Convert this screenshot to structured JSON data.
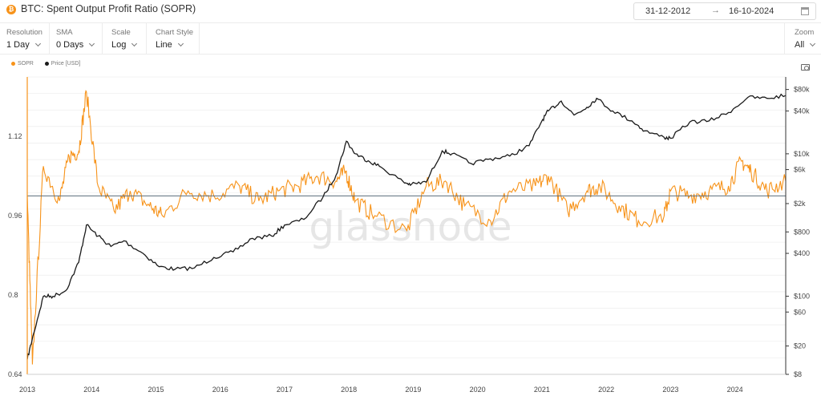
{
  "header": {
    "title": "BTC: Spent Output Profit Ratio (SOPR)",
    "asset_badge": "₿",
    "date_start": "31-12-2012",
    "date_arrow": "→",
    "date_end": "16-10-2024"
  },
  "controls": [
    {
      "label": "Resolution",
      "value": "1 Day"
    },
    {
      "label": "SMA",
      "value": "0 Days"
    },
    {
      "label": "Scale",
      "value": "Log"
    },
    {
      "label": "Chart Style",
      "value": "Line"
    }
  ],
  "zoom": {
    "label": "Zoom",
    "value": "All"
  },
  "watermark": "glassnode",
  "colors": {
    "sopr": "#f7931a",
    "price": "#1a1a1a",
    "baseline": "#5a6b7a",
    "grid": "#efefef"
  },
  "chart_data": {
    "type": "line",
    "title": "BTC: Spent Output Profit Ratio (SOPR)",
    "legend": [
      "SOPR",
      "Price [USD]"
    ],
    "legend_position": "top-left",
    "x_ticks": [
      "2013",
      "2014",
      "2015",
      "2016",
      "2017",
      "2018",
      "2019",
      "2020",
      "2021",
      "2022",
      "2023",
      "2024"
    ],
    "x_range": [
      2013.0,
      2024.79
    ],
    "left_axis": {
      "ticks": [
        "1.12",
        "0.96",
        "0.8",
        "0.64"
      ],
      "tick_values": [
        1.12,
        0.96,
        0.8,
        0.64
      ],
      "range": [
        0.64,
        1.24
      ]
    },
    "right_axis": {
      "scale": "log",
      "ticks": [
        "$80k",
        "$40k",
        "$10k",
        "$6k",
        "$2k",
        "$800",
        "$400",
        "$100",
        "$60",
        "$20",
        "$8"
      ],
      "tick_values": [
        80000,
        40000,
        10000,
        6000,
        2000,
        800,
        400,
        100,
        60,
        20,
        8
      ],
      "range": [
        8,
        120000
      ]
    },
    "baseline": 1.0,
    "series": [
      {
        "name": "Price [USD]",
        "axis": "right",
        "x": [
          2013.0,
          2013.1,
          2013.25,
          2013.4,
          2013.6,
          2013.8,
          2013.92,
          2014.1,
          2014.3,
          2014.5,
          2014.8,
          2015.05,
          2015.3,
          2015.6,
          2015.9,
          2016.2,
          2016.5,
          2016.8,
          2017.0,
          2017.3,
          2017.6,
          2017.8,
          2017.96,
          2018.1,
          2018.3,
          2018.5,
          2018.85,
          2018.97,
          2019.2,
          2019.45,
          2019.6,
          2019.9,
          2020.2,
          2020.5,
          2020.8,
          2021.0,
          2021.1,
          2021.3,
          2021.5,
          2021.7,
          2021.85,
          2022.1,
          2022.4,
          2022.6,
          2022.9,
          2023.0,
          2023.3,
          2023.6,
          2023.9,
          2024.2,
          2024.5,
          2024.79
        ],
        "y": [
          13,
          30,
          100,
          100,
          120,
          300,
          1000,
          700,
          500,
          600,
          400,
          260,
          240,
          250,
          350,
          420,
          650,
          700,
          1000,
          1200,
          2500,
          5000,
          15000,
          10000,
          8000,
          6500,
          4000,
          3700,
          4000,
          11000,
          10000,
          7300,
          8500,
          9300,
          13000,
          29000,
          40000,
          55000,
          35000,
          45000,
          60000,
          40000,
          29000,
          21000,
          17000,
          16500,
          28000,
          29000,
          38000,
          62000,
          60000,
          66000
        ]
      },
      {
        "name": "SOPR",
        "axis": "left",
        "x": [
          2013.0,
          2013.08,
          2013.25,
          2013.5,
          2013.65,
          2013.8,
          2013.92,
          2014.1,
          2014.35,
          2014.6,
          2014.9,
          2015.1,
          2015.5,
          2015.9,
          2016.3,
          2016.6,
          2016.9,
          2017.2,
          2017.5,
          2017.8,
          2017.95,
          2018.1,
          2018.4,
          2018.9,
          2019.2,
          2019.5,
          2019.8,
          2020.2,
          2020.5,
          2020.9,
          2021.1,
          2021.4,
          2021.7,
          2021.9,
          2022.2,
          2022.5,
          2022.9,
          2023.0,
          2023.3,
          2023.6,
          2023.9,
          2024.1,
          2024.25,
          2024.5,
          2024.79
        ],
        "y": [
          1.0,
          0.66,
          1.06,
          0.99,
          1.08,
          1.09,
          1.21,
          1.02,
          0.97,
          1.01,
          0.98,
          0.96,
          1.01,
          1.0,
          1.02,
          0.99,
          1.01,
          1.02,
          1.04,
          1.03,
          1.05,
          0.99,
          0.96,
          0.93,
          1.02,
          1.03,
          0.98,
          0.95,
          1.01,
          1.02,
          1.04,
          0.97,
          1.01,
          1.02,
          0.98,
          0.95,
          0.96,
          1.01,
          1.0,
          1.01,
          1.02,
          1.07,
          1.05,
          1.01,
          1.03
        ]
      }
    ]
  }
}
